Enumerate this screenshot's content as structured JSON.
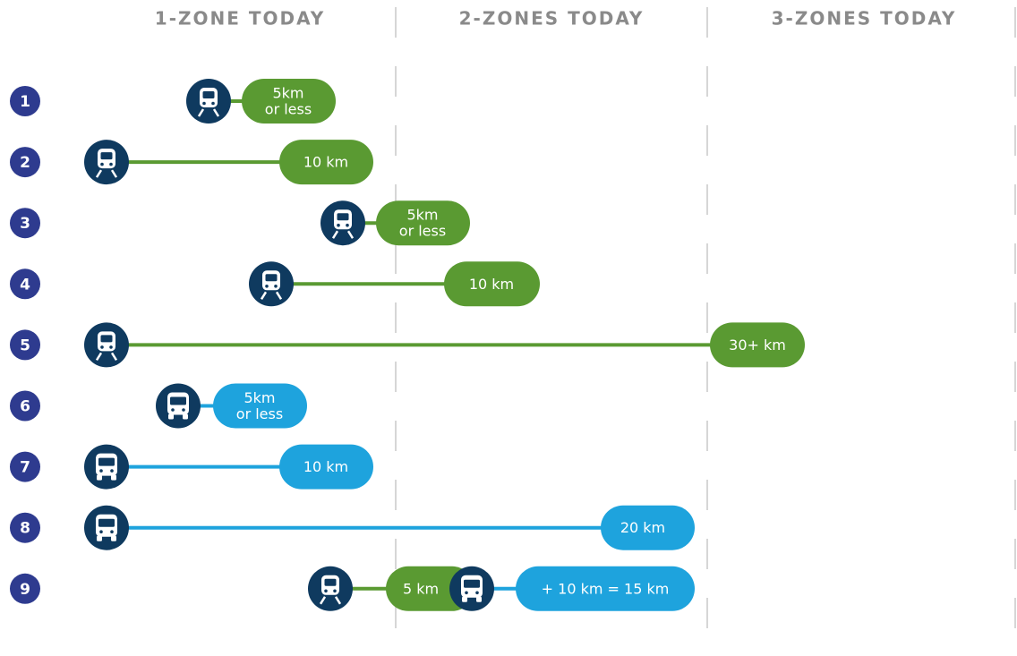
{
  "headers": [
    "1-ZONE TODAY",
    "2-ZONES TODAY",
    "3-ZONES TODAY"
  ],
  "rows": [
    {
      "number": "1",
      "segments": [
        {
          "mode": "train",
          "label": [
            "5km",
            "or less"
          ]
        }
      ]
    },
    {
      "number": "2",
      "segments": [
        {
          "mode": "train",
          "label": [
            "10 km"
          ]
        }
      ]
    },
    {
      "number": "3",
      "segments": [
        {
          "mode": "train",
          "label": [
            "5km",
            "or less"
          ]
        }
      ]
    },
    {
      "number": "4",
      "segments": [
        {
          "mode": "train",
          "label": [
            "10 km"
          ]
        }
      ]
    },
    {
      "number": "5",
      "segments": [
        {
          "mode": "train",
          "label": [
            "30+ km"
          ]
        }
      ]
    },
    {
      "number": "6",
      "segments": [
        {
          "mode": "bus",
          "label": [
            "5km",
            "or less"
          ]
        }
      ]
    },
    {
      "number": "7",
      "segments": [
        {
          "mode": "bus",
          "label": [
            "10 km"
          ]
        }
      ]
    },
    {
      "number": "8",
      "segments": [
        {
          "mode": "bus",
          "label": [
            "20 km"
          ]
        }
      ]
    },
    {
      "number": "9",
      "segments": [
        {
          "mode": "train",
          "label": [
            "5 km"
          ]
        },
        {
          "mode": "bus",
          "label": [
            "+ 10 km = 15 km"
          ]
        }
      ]
    }
  ]
}
